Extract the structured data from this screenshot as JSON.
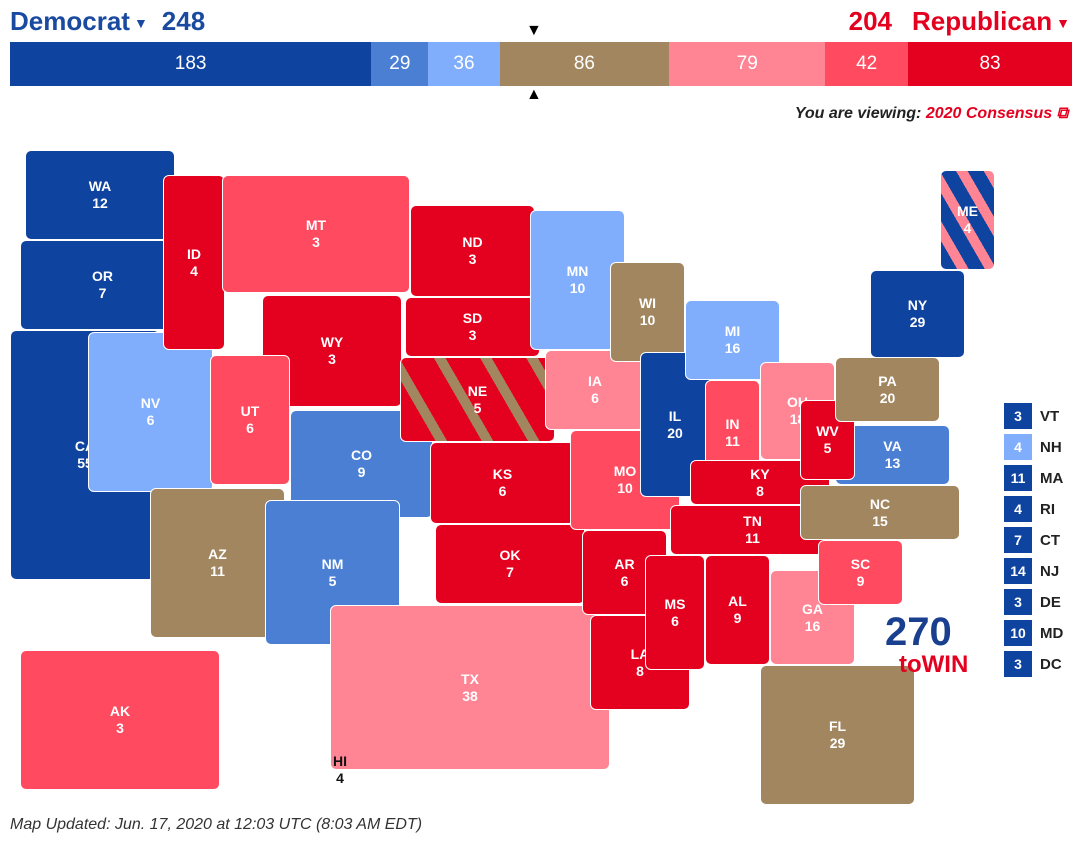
{
  "header": {
    "dem_label": "Democrat",
    "dem_total": "248",
    "rep_total": "204",
    "rep_label": "Republican"
  },
  "colors": {
    "safe_d": "#0f43a0",
    "likely_d": "#4a7fd4",
    "lean_d": "#80aefc",
    "tossup": "#a2865f",
    "lean_r": "#ff8494",
    "likely_r": "#ff4a5f",
    "safe_r": "#e4001f"
  },
  "bar": [
    {
      "cat": "safe_d",
      "value": "183"
    },
    {
      "cat": "likely_d",
      "value": "29"
    },
    {
      "cat": "lean_d",
      "value": "36"
    },
    {
      "cat": "tossup",
      "value": "86"
    },
    {
      "cat": "lean_r",
      "value": "79"
    },
    {
      "cat": "likely_r",
      "value": "42"
    },
    {
      "cat": "safe_r",
      "value": "83"
    }
  ],
  "viewing": {
    "prefix": "You are viewing:",
    "map_name": "2020 Consensus",
    "icon": "external-link-icon"
  },
  "states": [
    {
      "abbr": "WA",
      "ev": "12",
      "cat": "safe_d"
    },
    {
      "abbr": "OR",
      "ev": "7",
      "cat": "safe_d"
    },
    {
      "abbr": "CA",
      "ev": "55",
      "cat": "safe_d"
    },
    {
      "abbr": "NV",
      "ev": "6",
      "cat": "lean_d"
    },
    {
      "abbr": "ID",
      "ev": "4",
      "cat": "safe_r"
    },
    {
      "abbr": "MT",
      "ev": "3",
      "cat": "likely_r"
    },
    {
      "abbr": "WY",
      "ev": "3",
      "cat": "safe_r"
    },
    {
      "abbr": "UT",
      "ev": "6",
      "cat": "likely_r"
    },
    {
      "abbr": "AZ",
      "ev": "11",
      "cat": "tossup"
    },
    {
      "abbr": "CO",
      "ev": "9",
      "cat": "likely_d"
    },
    {
      "abbr": "NM",
      "ev": "5",
      "cat": "likely_d"
    },
    {
      "abbr": "ND",
      "ev": "3",
      "cat": "safe_r"
    },
    {
      "abbr": "SD",
      "ev": "3",
      "cat": "safe_r"
    },
    {
      "abbr": "NE",
      "ev": "5",
      "cat": "safe_r"
    },
    {
      "abbr": "KS",
      "ev": "6",
      "cat": "safe_r"
    },
    {
      "abbr": "OK",
      "ev": "7",
      "cat": "safe_r"
    },
    {
      "abbr": "TX",
      "ev": "38",
      "cat": "lean_r"
    },
    {
      "abbr": "MN",
      "ev": "10",
      "cat": "lean_d"
    },
    {
      "abbr": "IA",
      "ev": "6",
      "cat": "lean_r"
    },
    {
      "abbr": "MO",
      "ev": "10",
      "cat": "likely_r"
    },
    {
      "abbr": "AR",
      "ev": "6",
      "cat": "safe_r"
    },
    {
      "abbr": "LA",
      "ev": "8",
      "cat": "safe_r"
    },
    {
      "abbr": "WI",
      "ev": "10",
      "cat": "tossup"
    },
    {
      "abbr": "IL",
      "ev": "20",
      "cat": "safe_d"
    },
    {
      "abbr": "MI",
      "ev": "16",
      "cat": "lean_d"
    },
    {
      "abbr": "IN",
      "ev": "11",
      "cat": "likely_r"
    },
    {
      "abbr": "OH",
      "ev": "18",
      "cat": "lean_r"
    },
    {
      "abbr": "KY",
      "ev": "8",
      "cat": "safe_r"
    },
    {
      "abbr": "TN",
      "ev": "11",
      "cat": "safe_r"
    },
    {
      "abbr": "MS",
      "ev": "6",
      "cat": "safe_r"
    },
    {
      "abbr": "AL",
      "ev": "9",
      "cat": "safe_r"
    },
    {
      "abbr": "GA",
      "ev": "16",
      "cat": "lean_r"
    },
    {
      "abbr": "FL",
      "ev": "29",
      "cat": "tossup"
    },
    {
      "abbr": "SC",
      "ev": "9",
      "cat": "likely_r"
    },
    {
      "abbr": "NC",
      "ev": "15",
      "cat": "tossup"
    },
    {
      "abbr": "VA",
      "ev": "13",
      "cat": "likely_d"
    },
    {
      "abbr": "WV",
      "ev": "5",
      "cat": "safe_r"
    },
    {
      "abbr": "PA",
      "ev": "20",
      "cat": "tossup"
    },
    {
      "abbr": "NY",
      "ev": "29",
      "cat": "safe_d"
    },
    {
      "abbr": "ME",
      "ev": "4",
      "cat": "safe_d"
    },
    {
      "abbr": "AK",
      "ev": "3",
      "cat": "likely_r"
    },
    {
      "abbr": "HI",
      "ev": "4",
      "cat": "safe_d"
    }
  ],
  "small_states": [
    {
      "abbr": "VT",
      "ev": "3",
      "cat": "safe_d"
    },
    {
      "abbr": "NH",
      "ev": "4",
      "cat": "lean_d"
    },
    {
      "abbr": "MA",
      "ev": "11",
      "cat": "safe_d"
    },
    {
      "abbr": "RI",
      "ev": "4",
      "cat": "safe_d"
    },
    {
      "abbr": "CT",
      "ev": "7",
      "cat": "safe_d"
    },
    {
      "abbr": "NJ",
      "ev": "14",
      "cat": "safe_d"
    },
    {
      "abbr": "DE",
      "ev": "3",
      "cat": "safe_d"
    },
    {
      "abbr": "MD",
      "ev": "10",
      "cat": "safe_d"
    },
    {
      "abbr": "DC",
      "ev": "3",
      "cat": "safe_d"
    }
  ],
  "logo": {
    "number": "270",
    "text": "toWIN"
  },
  "footer": "Map Updated: Jun. 17, 2020 at 12:03 UTC (8:03 AM EDT)"
}
